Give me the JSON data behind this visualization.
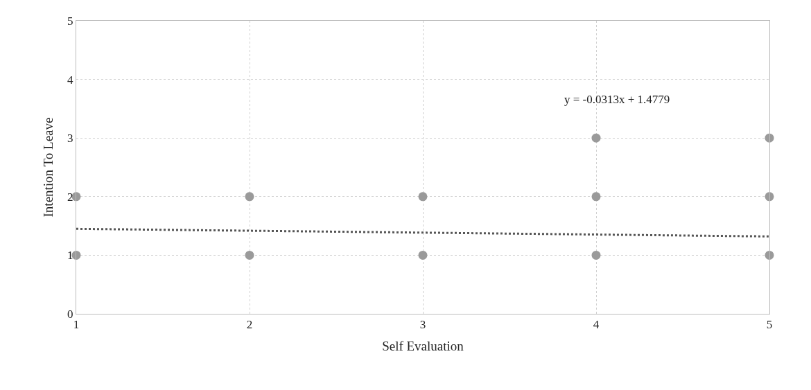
{
  "chart_data": {
    "type": "scatter",
    "xlabel": "Self Evaluation",
    "ylabel": "Intention To Leave",
    "annotations": [
      "y = -0.0313x + 1.4779"
    ],
    "xlim": [
      1,
      5
    ],
    "xticks": [
      1,
      2,
      3,
      4,
      5
    ],
    "ylim": [
      0,
      5
    ],
    "yticks": [
      0,
      1,
      2,
      3,
      4,
      5
    ],
    "grid": true,
    "series": [
      {
        "color": "#9a9a9a",
        "marker": "circle",
        "x": [
          1,
          1,
          2,
          2,
          3,
          3,
          4,
          4,
          4,
          5,
          5,
          5
        ],
        "values": [
          1,
          2,
          1,
          2,
          1,
          2,
          1,
          2,
          3,
          1,
          2,
          3
        ]
      },
      {
        "type": "line",
        "color": "#555555",
        "line_style": "dotted",
        "x": [
          1,
          5
        ],
        "values": [
          1.45,
          1.32
        ]
      }
    ]
  }
}
